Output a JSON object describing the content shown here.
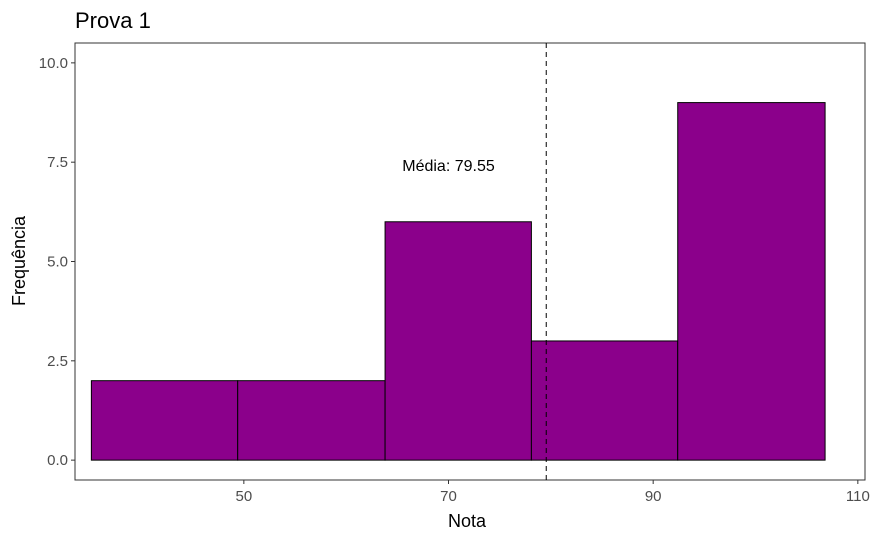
{
  "chart_data": {
    "type": "bar",
    "title": "Prova 1",
    "xlabel": "Nota",
    "ylabel": "Frequência",
    "xlim": [
      33.5,
      110.7
    ],
    "ylim": [
      -0.5,
      10.5
    ],
    "x_ticks": [
      50,
      70,
      90,
      110
    ],
    "x_tick_labels": [
      "50",
      "70",
      "90",
      "110"
    ],
    "y_ticks": [
      0,
      2.5,
      5,
      7.5,
      10
    ],
    "y_tick_labels": [
      "0.0",
      "2.5",
      "5.0",
      "7.5",
      "10.0"
    ],
    "bins": [
      {
        "x0": 35.1,
        "x1": 49.4,
        "count": 2
      },
      {
        "x0": 49.4,
        "x1": 63.8,
        "count": 2
      },
      {
        "x0": 63.8,
        "x1": 78.1,
        "count": 6
      },
      {
        "x0": 78.1,
        "x1": 92.4,
        "count": 3
      },
      {
        "x0": 92.4,
        "x1": 106.8,
        "count": 9
      }
    ],
    "mean": 79.55,
    "mean_label": "Média: 79.55",
    "mean_label_position": {
      "x": 70,
      "y": 7.4
    },
    "bar_color": "#8B008B",
    "bar_outline": "#000000",
    "mean_line_style": "dashed",
    "grid": false,
    "legend": "none"
  }
}
